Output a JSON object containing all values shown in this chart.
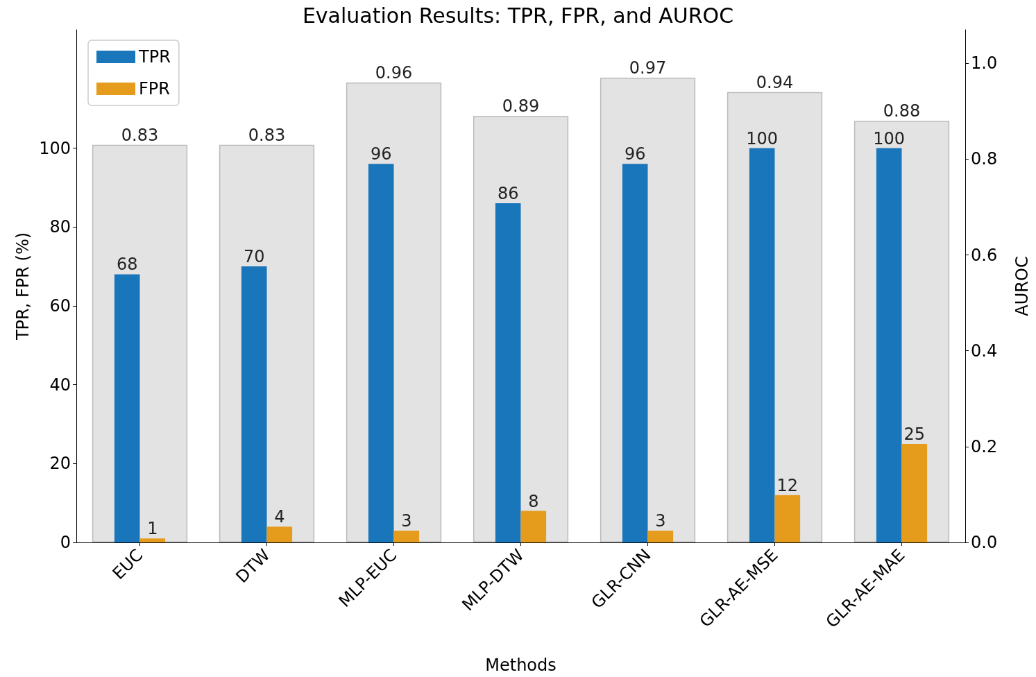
{
  "chart_data": {
    "type": "bar",
    "title": "Evaluation Results: TPR, FPR, and AUROC",
    "xlabel": "Methods",
    "ylabel": "TPR, FPR (%)",
    "y2label": "AUROC",
    "categories": [
      "EUC",
      "DTW",
      "MLP-EUC",
      "MLP-DTW",
      "GLR-CNN",
      "GLR-AE-MSE",
      "GLR-AE-MAE"
    ],
    "series": [
      {
        "color": "#e3e3e3",
        "axis": "y2",
        "values": [
          0.83,
          0.83,
          0.96,
          0.89,
          0.97,
          0.94,
          0.88
        ]
      },
      {
        "name": "TPR",
        "color": "#1a76bb",
        "values": [
          68,
          70,
          96,
          86,
          96,
          100,
          100
        ]
      },
      {
        "name": "FPR",
        "color": "#e59c1d",
        "values": [
          1,
          4,
          3,
          8,
          3,
          12,
          25
        ]
      }
    ],
    "ylim": [
      0,
      130
    ],
    "yticks": [
      0,
      20,
      40,
      60,
      80,
      100
    ],
    "y2lim": [
      0,
      1.07
    ],
    "y2ticks": [
      {
        "value": 0,
        "label": "0.0"
      },
      0.2,
      0.4,
      0.6,
      0.8,
      {
        "value": 1,
        "label": "1.0"
      }
    ],
    "data_labels": true,
    "legend": "top left",
    "grid": false
  }
}
